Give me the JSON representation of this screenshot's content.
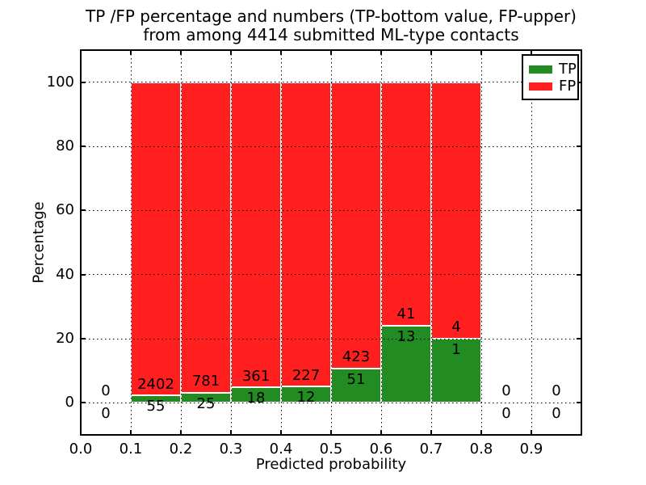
{
  "chart_data": {
    "type": "bar",
    "stacked": true,
    "title_lines": [
      "TP /FP percentage and numbers (TP-bottom value, FP-upper)",
      "from among 4414 submitted ML-type contacts"
    ],
    "xlabel": "Predicted probability",
    "ylabel": "Percentage",
    "xlim": [
      0.0,
      1.0
    ],
    "ylim": [
      -10,
      110
    ],
    "xticks": {
      "values": [
        0.0,
        0.1,
        0.2,
        0.3,
        0.4,
        0.5,
        0.6,
        0.7,
        0.8,
        0.9
      ],
      "labels": [
        "0.0",
        "0.1",
        "0.2",
        "0.3",
        "0.4",
        "0.5",
        "0.6",
        "0.7",
        "0.8",
        "0.9"
      ]
    },
    "yticks": {
      "values": [
        0,
        20,
        40,
        60,
        80,
        100
      ],
      "labels": [
        "0",
        "20",
        "40",
        "60",
        "80",
        "100"
      ]
    },
    "grid": {
      "style": "dotted",
      "color": "#000000",
      "above_bars": true
    },
    "total_contacts": 4414,
    "bar_total_pct": 100,
    "bins": [
      {
        "range": [
          0.0,
          0.1
        ],
        "tp_count": 0,
        "fp_count": 0,
        "bar": false
      },
      {
        "range": [
          0.1,
          0.2
        ],
        "tp_count": 55,
        "fp_count": 2402,
        "bar": true
      },
      {
        "range": [
          0.2,
          0.3
        ],
        "tp_count": 25,
        "fp_count": 781,
        "bar": true
      },
      {
        "range": [
          0.3,
          0.4
        ],
        "tp_count": 18,
        "fp_count": 361,
        "bar": true
      },
      {
        "range": [
          0.4,
          0.5
        ],
        "tp_count": 12,
        "fp_count": 227,
        "bar": true
      },
      {
        "range": [
          0.5,
          0.6
        ],
        "tp_count": 51,
        "fp_count": 423,
        "bar": true
      },
      {
        "range": [
          0.6,
          0.7
        ],
        "tp_count": 13,
        "fp_count": 41,
        "bar": true
      },
      {
        "range": [
          0.7,
          0.8
        ],
        "tp_count": 1,
        "fp_count": 4,
        "bar": true
      },
      {
        "range": [
          0.8,
          0.9
        ],
        "tp_count": 0,
        "fp_count": 0,
        "bar": false
      },
      {
        "range": [
          0.9,
          1.0
        ],
        "tp_count": 0,
        "fp_count": 0,
        "bar": false
      }
    ],
    "annotation_offset_pct": 3.5,
    "legend": {
      "position": "upper right",
      "entries": [
        {
          "label": "TP",
          "color": "#228b22"
        },
        {
          "label": "FP",
          "color": "#ff1f1f"
        }
      ]
    },
    "colors": {
      "tp": "#228b22",
      "fp": "#ff1f1f",
      "bar_edge": "#ffffff",
      "text": "#000000",
      "background": "#ffffff"
    }
  }
}
